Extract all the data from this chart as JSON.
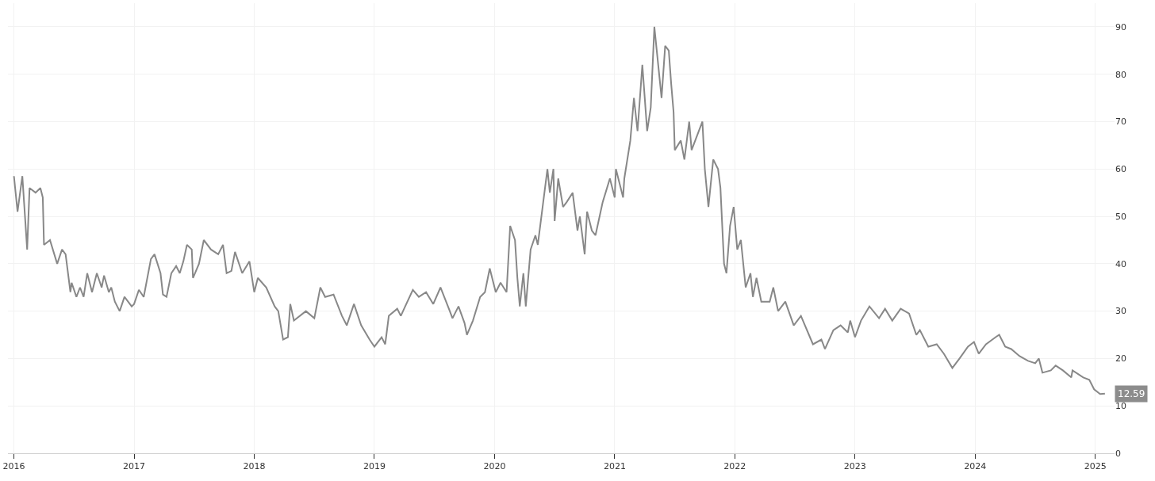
{
  "chart_data": {
    "type": "line",
    "x": [
      2016.0,
      2016.03,
      2016.07,
      2016.11,
      2016.13,
      2016.18,
      2016.22,
      2016.24,
      2016.25,
      2016.3,
      2016.36,
      2016.4,
      2016.43,
      2016.47,
      2016.48,
      2016.52,
      2016.55,
      2016.58,
      2016.61,
      2016.65,
      2016.69,
      2016.73,
      2016.75,
      2016.79,
      2016.81,
      2016.84,
      2016.88,
      2016.92,
      2016.98,
      2017.0,
      2017.04,
      2017.08,
      2017.14,
      2017.17,
      2017.22,
      2017.24,
      2017.27,
      2017.31,
      2017.35,
      2017.38,
      2017.41,
      2017.44,
      2017.48,
      2017.49,
      2017.54,
      2017.58,
      2017.64,
      2017.7,
      2017.74,
      2017.77,
      2017.81,
      2017.84,
      2017.9,
      2017.96,
      2018.0,
      2018.03,
      2018.1,
      2018.17,
      2018.2,
      2018.24,
      2018.28,
      2018.3,
      2018.33,
      2018.43,
      2018.5,
      2018.55,
      2018.59,
      2018.66,
      2018.73,
      2018.77,
      2018.83,
      2018.89,
      2018.96,
      2019.0,
      2019.06,
      2019.09,
      2019.12,
      2019.19,
      2019.22,
      2019.32,
      2019.37,
      2019.43,
      2019.49,
      2019.55,
      2019.62,
      2019.65,
      2019.7,
      2019.75,
      2019.77,
      2019.82,
      2019.88,
      2019.92,
      2019.96,
      2020.01,
      2020.05,
      2020.1,
      2020.13,
      2020.17,
      2020.19,
      2020.21,
      2020.24,
      2020.26,
      2020.3,
      2020.34,
      2020.36,
      2020.4,
      2020.44,
      2020.46,
      2020.49,
      2020.5,
      2020.53,
      2020.57,
      2020.6,
      2020.65,
      2020.69,
      2020.71,
      2020.75,
      2020.77,
      2020.81,
      2020.84,
      2020.9,
      2020.96,
      2021.0,
      2021.01,
      2021.07,
      2021.08,
      2021.13,
      2021.16,
      2021.19,
      2021.23,
      2021.27,
      2021.3,
      2021.33,
      2021.35,
      2021.39,
      2021.42,
      2021.45,
      2021.47,
      2021.49,
      2021.5,
      2021.55,
      2021.58,
      2021.62,
      2021.64,
      2021.7,
      2021.73,
      2021.75,
      2021.78,
      2021.82,
      2021.86,
      2021.88,
      2021.91,
      2021.93,
      2021.96,
      2021.99,
      2022.02,
      2022.05,
      2022.09,
      2022.13,
      2022.15,
      2022.18,
      2022.22,
      2022.29,
      2022.32,
      2022.36,
      2022.42,
      2022.49,
      2022.55,
      2022.65,
      2022.72,
      2022.75,
      2022.82,
      2022.88,
      2022.94,
      2022.96,
      2023.0,
      2023.05,
      2023.12,
      2023.2,
      2023.25,
      2023.31,
      2023.38,
      2023.45,
      2023.51,
      2023.54,
      2023.61,
      2023.68,
      2023.74,
      2023.81,
      2023.87,
      2023.94,
      2023.99,
      2024.03,
      2024.09,
      2024.17,
      2024.2,
      2024.25,
      2024.3,
      2024.37,
      2024.44,
      2024.5,
      2024.53,
      2024.56,
      2024.63,
      2024.67,
      2024.73,
      2024.8,
      2024.81,
      2024.9,
      2024.95,
      2024.99,
      2025.04,
      2025.08
    ],
    "series": [
      {
        "color": "#888888",
        "values": [
          58.5,
          51,
          58.5,
          43,
          56,
          55,
          56,
          54,
          44,
          45,
          40,
          43,
          42,
          34,
          36,
          33,
          35,
          33,
          38,
          34,
          38,
          35,
          37.5,
          34,
          35,
          32,
          30,
          33,
          31,
          31.5,
          34.5,
          33,
          41,
          42,
          38,
          33.5,
          33,
          38,
          39.5,
          38,
          40.5,
          44,
          43,
          37,
          40,
          45,
          43,
          42,
          44,
          38,
          38.5,
          42.5,
          38,
          40.5,
          34,
          37,
          35,
          31,
          30,
          24,
          24.5,
          31.5,
          28,
          30,
          28.5,
          35,
          33,
          33.5,
          29,
          27,
          31.5,
          27,
          24,
          22.5,
          24.5,
          23,
          29,
          30.5,
          29,
          34.5,
          33,
          34,
          31.5,
          35,
          30.5,
          28.5,
          31,
          27.5,
          25,
          28,
          33,
          34,
          39,
          34,
          36,
          34,
          48,
          45,
          37,
          31,
          38,
          31,
          43,
          46,
          44,
          52,
          60,
          55,
          60,
          49,
          58,
          52,
          53,
          55,
          47,
          50,
          42,
          51,
          47,
          46,
          53,
          58,
          54,
          60,
          54,
          58,
          66,
          75,
          68,
          82,
          68,
          73,
          90,
          85,
          75,
          86,
          85,
          78,
          72,
          64,
          66,
          62,
          70,
          64,
          68,
          70,
          60,
          52,
          62,
          60,
          56,
          40,
          38,
          48,
          52,
          43,
          45,
          35,
          38,
          33,
          37,
          32,
          32,
          35,
          30,
          32,
          27,
          29,
          23,
          24,
          22,
          26,
          27,
          25.5,
          28,
          24.5,
          28,
          31,
          28.5,
          30.5,
          28,
          30.5,
          29.5,
          25,
          26,
          22.5,
          23,
          21,
          18,
          20,
          22.5,
          23.5,
          21,
          23,
          24.5,
          25,
          22.5,
          22,
          20.5,
          19.5,
          19,
          20,
          17,
          17.5,
          18.5,
          17.5,
          16,
          17.5,
          16,
          15.5,
          13.5,
          12.5,
          12.6
        ]
      }
    ],
    "xlim": [
      2015.95,
      2025.16
    ],
    "xticks": [
      2016,
      2017,
      2018,
      2019,
      2020,
      2021,
      2022,
      2023,
      2024,
      2025
    ],
    "ylim": [
      0,
      95
    ],
    "yticks": [
      0,
      10,
      20,
      30,
      40,
      50,
      60,
      70,
      80,
      90
    ],
    "annotations": [
      {
        "text": "12.59",
        "x": 2025.08,
        "y": 12.59
      }
    ],
    "grid": true,
    "marker": "none",
    "line_style": "solid"
  }
}
